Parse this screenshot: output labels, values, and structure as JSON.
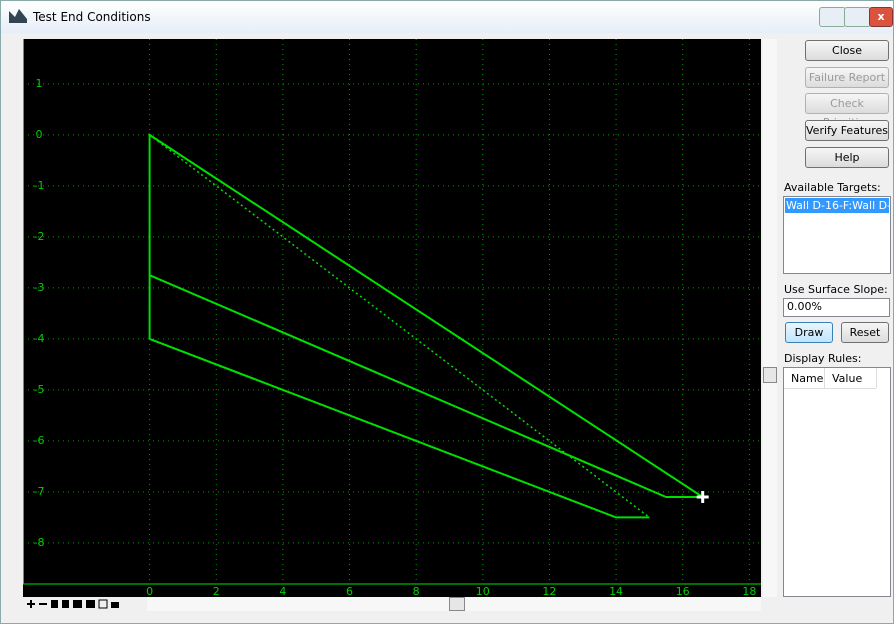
{
  "window": {
    "title": "Test End Conditions"
  },
  "buttons": {
    "close": "Close",
    "failure_report": "Failure Report",
    "check_priorities": "Check Priorities",
    "verify_features": "Verify Features",
    "help": "Help",
    "draw": "Draw",
    "reset": "Reset"
  },
  "targets": {
    "label": "Available Targets:",
    "items": [
      "Wall D-16-F:Wall D-16"
    ]
  },
  "slope": {
    "label": "Use Surface Slope:",
    "value": "0.00%"
  },
  "rules": {
    "label": "Display Rules:",
    "columns": [
      "Name",
      "Value"
    ]
  },
  "plot": {
    "xlim": [
      -3.8,
      18.35
    ],
    "ylim": [
      -9.06,
      1.88
    ],
    "xticks": [
      0,
      2,
      4,
      6,
      8,
      10,
      12,
      14,
      16,
      18
    ],
    "yticks": [
      1,
      0,
      -1,
      -2,
      -3,
      -4,
      -5,
      -6,
      -7,
      -8
    ],
    "grid": true,
    "color": "#00e000",
    "lines": [
      {
        "style": "solid",
        "x": [
          0,
          0,
          16.6,
          15.5,
          0
        ],
        "y": [
          -4,
          0,
          -7.1,
          -7.1,
          -2.75
        ]
      },
      {
        "style": "solid",
        "x": [
          0,
          14,
          15
        ],
        "y": [
          -4,
          -7.5,
          -7.5
        ]
      },
      {
        "style": "dotted",
        "x": [
          0,
          15
        ],
        "y": [
          0,
          -7.5
        ]
      }
    ],
    "marker": {
      "x": 16.6,
      "y": -7.1
    }
  }
}
